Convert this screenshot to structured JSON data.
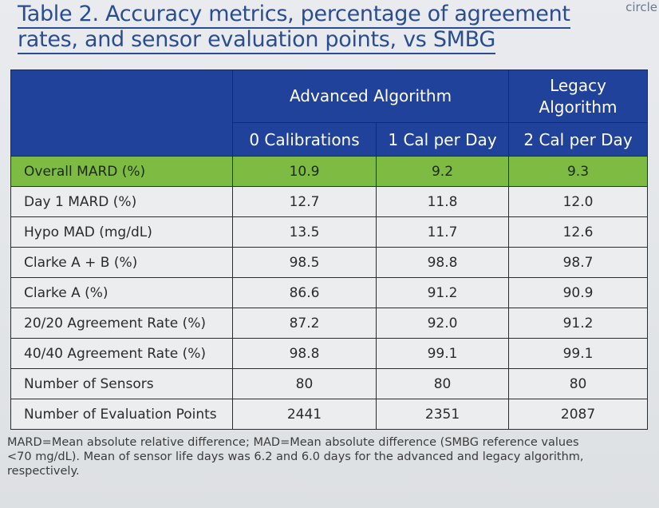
{
  "title": {
    "line1": "Table 2. Accuracy metrics, percentage of agreement",
    "line2": "rates, and sensor evaluation points, vs SMBG"
  },
  "corner_text": "circle",
  "table": {
    "group_headers": {
      "advanced": "Advanced Algorithm",
      "legacy": "Legacy Algorithm"
    },
    "sub_headers": [
      "0 Calibrations",
      "1 Cal per Day",
      "2 Cal per Day"
    ],
    "rows": [
      {
        "label": "Overall MARD (%)",
        "values": [
          "10.9",
          "9.2",
          "9.3"
        ],
        "highlight": true
      },
      {
        "label": "Day 1 MARD (%)",
        "values": [
          "12.7",
          "11.8",
          "12.0"
        ]
      },
      {
        "label": "Hypo MAD (mg/dL)",
        "values": [
          "13.5",
          "11.7",
          "12.6"
        ]
      },
      {
        "label": "Clarke A + B (%)",
        "values": [
          "98.5",
          "98.8",
          "98.7"
        ]
      },
      {
        "label": "Clarke A (%)",
        "values": [
          "86.6",
          "91.2",
          "90.9"
        ]
      },
      {
        "label": "20/20 Agreement Rate (%)",
        "values": [
          "87.2",
          "92.0",
          "91.2"
        ]
      },
      {
        "label": "40/40 Agreement Rate (%)",
        "values": [
          "98.8",
          "99.1",
          "99.1"
        ]
      },
      {
        "label": "Number of Sensors",
        "values": [
          "80",
          "80",
          "80"
        ]
      },
      {
        "label": "Number of Evaluation Points",
        "values": [
          "2441",
          "2351",
          "2087"
        ]
      }
    ]
  },
  "footnote": {
    "line1": "MARD=Mean absolute relative difference; MAD=Mean absolute difference (SMBG reference values",
    "line2": "<70 mg/dL). Mean of sensor life days was 6.2 and 6.0 days for the advanced and legacy algorithm,",
    "line3": "respectively."
  },
  "colors": {
    "title": "#2a4d8f",
    "header_bg": "#21429a",
    "highlight_row": "#7dbb42",
    "cell_bg": "#ecedef"
  }
}
